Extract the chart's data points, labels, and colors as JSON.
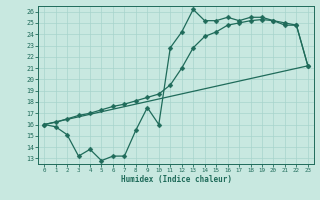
{
  "xlabel": "Humidex (Indice chaleur)",
  "bg_color": "#c8e8e0",
  "line_color": "#1f6b5a",
  "grid_color": "#a8d4cc",
  "xlim": [
    -0.5,
    23.5
  ],
  "ylim": [
    12.5,
    26.5
  ],
  "xticks": [
    0,
    1,
    2,
    3,
    4,
    5,
    6,
    7,
    8,
    9,
    10,
    11,
    12,
    13,
    14,
    15,
    16,
    17,
    18,
    19,
    20,
    21,
    22,
    23
  ],
  "yticks": [
    13,
    14,
    15,
    16,
    17,
    18,
    19,
    20,
    21,
    22,
    23,
    24,
    25,
    26
  ],
  "curve1_x": [
    0,
    1,
    2,
    3,
    4,
    5,
    6,
    7,
    8,
    9,
    10,
    11,
    12,
    13,
    14,
    15,
    16,
    17,
    18,
    19,
    20,
    21,
    22,
    23
  ],
  "curve1_y": [
    16.0,
    15.8,
    15.1,
    13.2,
    13.8,
    12.8,
    13.2,
    13.2,
    15.5,
    17.5,
    16.0,
    22.8,
    24.2,
    26.2,
    25.2,
    25.2,
    25.5,
    25.2,
    25.5,
    25.5,
    25.2,
    24.8,
    24.8,
    21.2
  ],
  "curve2_x": [
    0,
    1,
    2,
    3,
    4,
    5,
    6,
    7,
    8,
    9,
    10,
    11,
    12,
    13,
    14,
    15,
    16,
    17,
    18,
    19,
    20,
    21,
    22,
    23
  ],
  "curve2_y": [
    16.0,
    16.2,
    16.5,
    16.8,
    17.0,
    17.3,
    17.6,
    17.8,
    18.1,
    18.4,
    18.7,
    19.5,
    21.0,
    22.8,
    23.8,
    24.2,
    24.8,
    25.0,
    25.2,
    25.3,
    25.2,
    25.0,
    24.8,
    21.2
  ],
  "curve3_x": [
    0,
    23
  ],
  "curve3_y": [
    16.0,
    21.2
  ],
  "markersize": 2.5
}
